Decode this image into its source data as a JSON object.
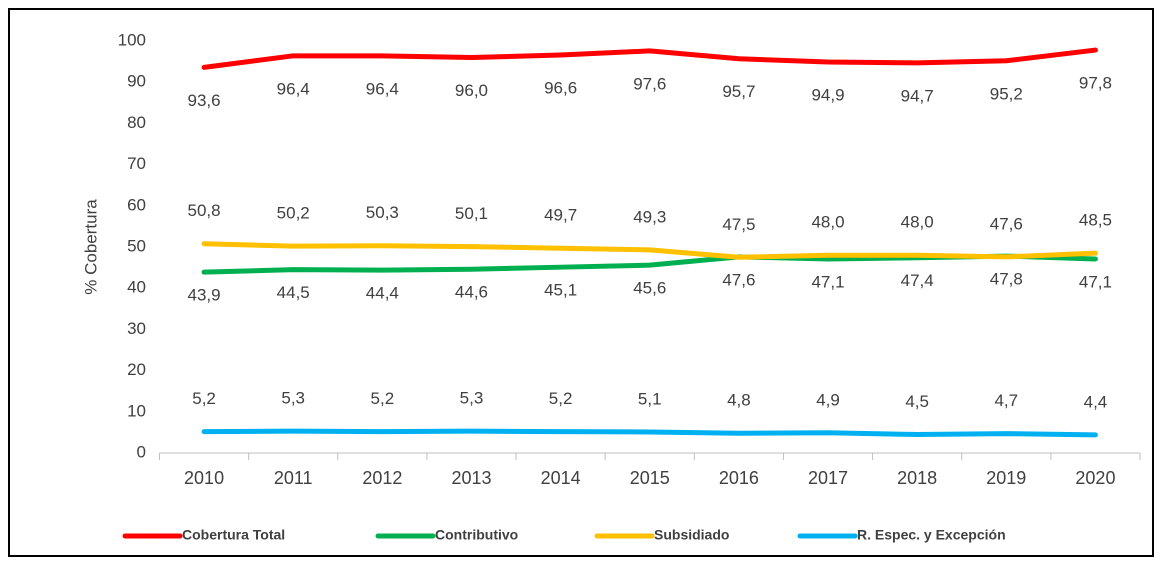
{
  "chart_data": {
    "type": "line",
    "y_label": "% Cobertura",
    "categories": [
      "2010",
      "2011",
      "2012",
      "2013",
      "2014",
      "2015",
      "2016",
      "2017",
      "2018",
      "2019",
      "2020"
    ],
    "series": [
      {
        "name": "Cobertura Total",
        "color": "#ff0000",
        "values": [
          93.6,
          96.4,
          96.4,
          96.0,
          96.6,
          97.6,
          95.7,
          94.9,
          94.7,
          95.2,
          97.8
        ],
        "value_labels": [
          "93,6",
          "96,4",
          "96,4",
          "96,0",
          "96,6",
          "97,6",
          "95,7",
          "94,9",
          "94,7",
          "95,2",
          "97,8"
        ]
      },
      {
        "name": "Contributivo",
        "color": "#00b050",
        "values": [
          43.9,
          44.5,
          44.4,
          44.6,
          45.1,
          45.6,
          47.6,
          47.1,
          47.4,
          47.8,
          47.1
        ],
        "value_labels": [
          "43,9",
          "44,5",
          "44,4",
          "44,6",
          "45,1",
          "45,6",
          "47,6",
          "47,1",
          "47,4",
          "47,8",
          "47,1"
        ]
      },
      {
        "name": "Subsidiado",
        "color": "#ffc000",
        "values": [
          50.8,
          50.2,
          50.3,
          50.1,
          49.7,
          49.3,
          47.5,
          48.0,
          48.0,
          47.6,
          48.5
        ],
        "value_labels": [
          "50,8",
          "50,2",
          "50,3",
          "50,1",
          "49,7",
          "49,3",
          "47,5",
          "48,0",
          "48,0",
          "47,6",
          "48,5"
        ]
      },
      {
        "name": "R. Espec. y Excepción",
        "color": "#00b0f0",
        "values": [
          5.2,
          5.3,
          5.2,
          5.3,
          5.2,
          5.1,
          4.8,
          4.9,
          4.5,
          4.7,
          4.4
        ],
        "value_labels": [
          "5,2",
          "5,3",
          "5,2",
          "5,3",
          "5,2",
          "5,1",
          "4,8",
          "4,9",
          "4,5",
          "4,7",
          "4,4"
        ]
      }
    ],
    "ylim": [
      0,
      100
    ],
    "yticks": [
      0,
      10,
      20,
      30,
      40,
      50,
      60,
      70,
      80,
      90,
      100
    ],
    "grid": false,
    "legend": "bottom"
  }
}
